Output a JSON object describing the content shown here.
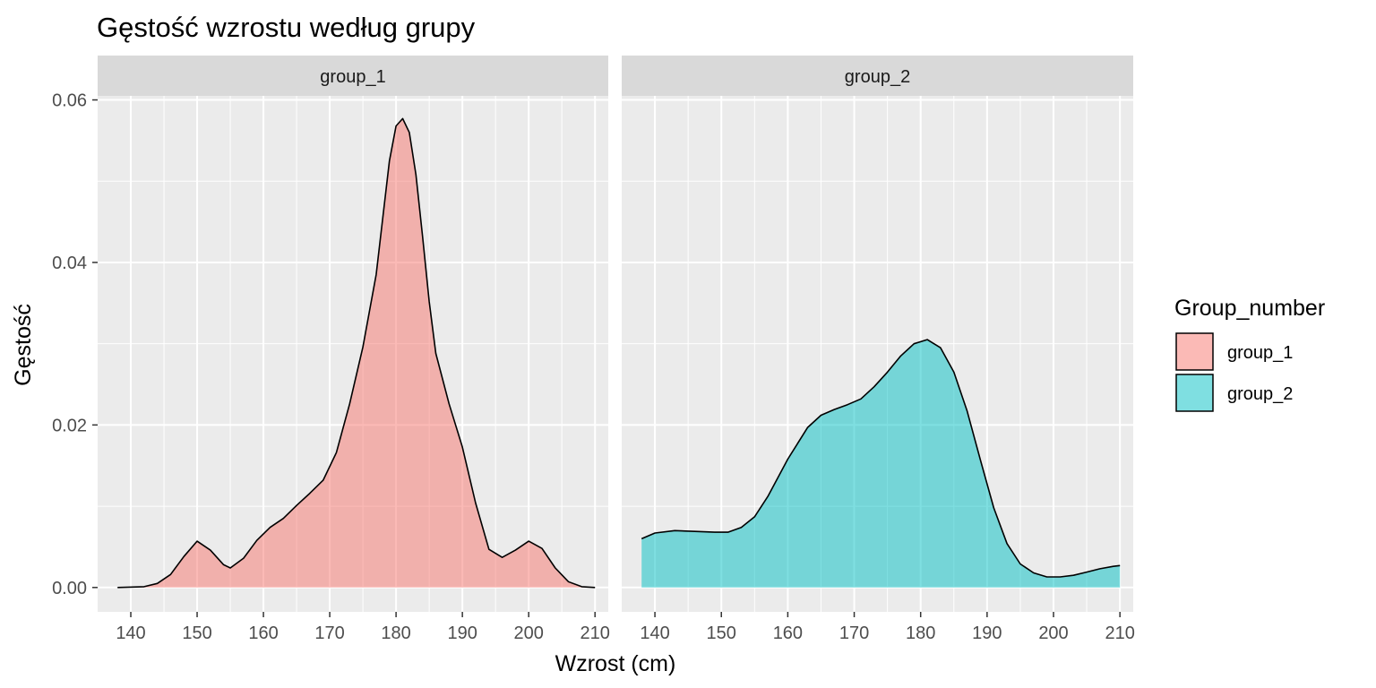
{
  "chart_data": {
    "type": "area",
    "title": "Gęstość wzrostu według grupy",
    "xlabel": "Wzrost (cm)",
    "ylabel": "Gęstość",
    "xlim": [
      135,
      212
    ],
    "ylim": [
      -0.003,
      0.0605
    ],
    "x_ticks": [
      140,
      150,
      160,
      170,
      180,
      190,
      200,
      210
    ],
    "x_tick_labels": [
      "140",
      "150",
      "160",
      "170",
      "180",
      "190",
      "200",
      "210"
    ],
    "y_ticks": [
      0,
      0.02,
      0.04,
      0.06
    ],
    "y_tick_labels": [
      "0.00",
      "0.02",
      "0.04",
      "0.06"
    ],
    "grid": true,
    "facets": [
      "group_1",
      "group_2"
    ],
    "legend": {
      "title": "Group_number",
      "position": "right",
      "items": [
        {
          "label": "group_1",
          "color": "#F8766D"
        },
        {
          "label": "group_2",
          "color": "#00BFC4"
        }
      ]
    },
    "series": [
      {
        "name": "group_1",
        "facet": "group_1",
        "color": "#F8766D",
        "x": [
          138,
          142,
          144,
          146,
          148,
          150,
          152,
          154,
          155,
          157,
          159,
          161,
          163,
          165,
          167,
          169,
          171,
          173,
          175,
          177,
          178,
          179,
          180,
          181,
          182,
          183,
          184,
          185,
          186,
          188,
          190,
          192,
          194,
          196,
          198,
          200,
          202,
          204,
          206,
          208,
          210
        ],
        "y": [
          0.0,
          0.0001,
          0.0005,
          0.0016,
          0.0038,
          0.0057,
          0.0046,
          0.0028,
          0.0024,
          0.0036,
          0.0058,
          0.0074,
          0.0085,
          0.0101,
          0.0116,
          0.0132,
          0.0166,
          0.0226,
          0.0296,
          0.0385,
          0.0455,
          0.0525,
          0.0568,
          0.0577,
          0.056,
          0.0508,
          0.0432,
          0.0352,
          0.0288,
          0.0226,
          0.0173,
          0.0104,
          0.0047,
          0.0037,
          0.0046,
          0.0057,
          0.0048,
          0.0024,
          0.0007,
          0.0001,
          0.0
        ]
      },
      {
        "name": "group_2",
        "facet": "group_2",
        "color": "#00BFC4",
        "x": [
          138,
          140,
          143,
          146,
          149,
          151,
          153,
          155,
          157,
          160,
          163,
          165,
          167,
          169,
          171,
          173,
          175,
          177,
          179,
          181,
          183,
          185,
          187,
          189,
          191,
          193,
          195,
          197,
          199,
          201,
          203,
          205,
          207,
          209,
          210
        ],
        "y": [
          0.006,
          0.0067,
          0.007,
          0.0069,
          0.0068,
          0.0068,
          0.0074,
          0.0087,
          0.0112,
          0.0158,
          0.0197,
          0.0212,
          0.0219,
          0.0225,
          0.0232,
          0.0247,
          0.0265,
          0.0285,
          0.03,
          0.0305,
          0.0295,
          0.0265,
          0.0217,
          0.0157,
          0.0098,
          0.0054,
          0.0029,
          0.0018,
          0.0013,
          0.0013,
          0.0015,
          0.0019,
          0.0023,
          0.0026,
          0.0027
        ]
      }
    ]
  }
}
